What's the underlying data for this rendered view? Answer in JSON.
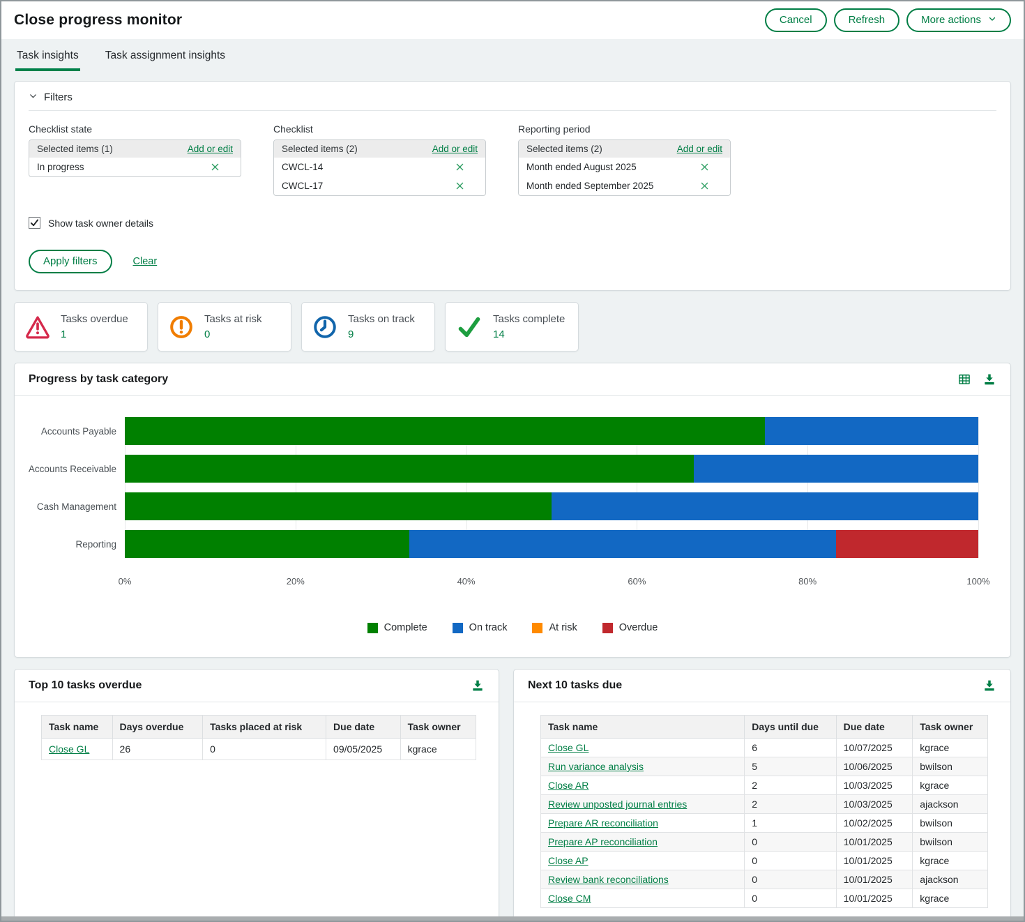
{
  "header": {
    "title": "Close progress monitor",
    "buttons": {
      "cancel": "Cancel",
      "refresh": "Refresh",
      "more_actions": "More actions"
    }
  },
  "tabs": [
    {
      "label": "Task insights",
      "active": true
    },
    {
      "label": "Task assignment insights",
      "active": false
    }
  ],
  "filters": {
    "title": "Filters",
    "groups": [
      {
        "label": "Checklist state",
        "selected_header": "Selected items (1)",
        "add_or_edit": "Add or edit",
        "items": [
          "In progress"
        ]
      },
      {
        "label": "Checklist",
        "selected_header": "Selected items (2)",
        "add_or_edit": "Add or edit",
        "items": [
          "CWCL-14",
          "CWCL-17"
        ]
      },
      {
        "label": "Reporting period",
        "selected_header": "Selected items (2)",
        "add_or_edit": "Add or edit",
        "items": [
          "Month ended August 2025",
          "Month ended September 2025"
        ]
      }
    ],
    "checkbox_label": "Show task owner details",
    "checkbox_checked": true,
    "apply_button": "Apply filters",
    "clear_link": "Clear"
  },
  "summary_cards": [
    {
      "label": "Tasks overdue",
      "value": "1",
      "icon": "warning-triangle",
      "color": "#d5294b"
    },
    {
      "label": "Tasks at risk",
      "value": "0",
      "icon": "exclamation-circle",
      "color": "#f07d00"
    },
    {
      "label": "Tasks on track",
      "value": "9",
      "icon": "clock",
      "color": "#1165ab"
    },
    {
      "label": "Tasks complete",
      "value": "14",
      "icon": "checkmark",
      "color": "#1d9e3f"
    }
  ],
  "chart_card": {
    "title": "Progress by task category"
  },
  "chart_data": {
    "type": "bar",
    "orientation": "horizontal",
    "stacked": true,
    "title": "Progress by task category",
    "categories": [
      "Accounts Payable",
      "Accounts Receivable",
      "Cash Management",
      "Reporting"
    ],
    "series": [
      {
        "name": "Complete",
        "color": "#008000",
        "values": [
          75,
          66.7,
          50,
          33.3
        ]
      },
      {
        "name": "On track",
        "color": "#1268c3",
        "values": [
          25,
          33.3,
          50,
          50
        ]
      },
      {
        "name": "At risk",
        "color": "#ff8a00",
        "values": [
          0,
          0,
          0,
          0
        ]
      },
      {
        "name": "Overdue",
        "color": "#c0282d",
        "values": [
          0,
          0,
          0,
          16.7
        ]
      }
    ],
    "x_ticks": [
      "0%",
      "20%",
      "40%",
      "60%",
      "80%",
      "100%"
    ],
    "xlim": [
      0,
      100
    ],
    "grid": true,
    "legend_position": "bottom"
  },
  "overdue_table": {
    "title": "Top 10 tasks overdue",
    "columns": [
      "Task name",
      "Days overdue",
      "Tasks placed at risk",
      "Due date",
      "Task owner"
    ],
    "rows": [
      {
        "cells": [
          "Close GL",
          "26",
          "0",
          "09/05/2025",
          "kgrace"
        ]
      }
    ]
  },
  "due_table": {
    "title": "Next 10 tasks due",
    "columns": [
      "Task name",
      "Days until due",
      "Due date",
      "Task owner"
    ],
    "rows": [
      {
        "cells": [
          "Close GL",
          "6",
          "10/07/2025",
          "kgrace"
        ]
      },
      {
        "cells": [
          "Run variance analysis",
          "5",
          "10/06/2025",
          "bwilson"
        ]
      },
      {
        "cells": [
          "Close AR",
          "2",
          "10/03/2025",
          "kgrace"
        ]
      },
      {
        "cells": [
          "Review unposted journal entries",
          "2",
          "10/03/2025",
          "ajackson"
        ]
      },
      {
        "cells": [
          "Prepare AR reconciliation",
          "1",
          "10/02/2025",
          "bwilson"
        ]
      },
      {
        "cells": [
          "Prepare AP reconciliation",
          "0",
          "10/01/2025",
          "bwilson"
        ]
      },
      {
        "cells": [
          "Close AP",
          "0",
          "10/01/2025",
          "kgrace"
        ]
      },
      {
        "cells": [
          "Review bank reconciliations",
          "0",
          "10/01/2025",
          "ajackson"
        ]
      },
      {
        "cells": [
          "Close CM",
          "0",
          "10/01/2025",
          "kgrace"
        ]
      }
    ]
  },
  "colors": {
    "brand_green": "#007e45",
    "background": "#eef2f3",
    "bar_complete": "#008000",
    "bar_on_track": "#1268c3",
    "bar_at_risk": "#ff8a00",
    "bar_overdue": "#c0282d"
  }
}
